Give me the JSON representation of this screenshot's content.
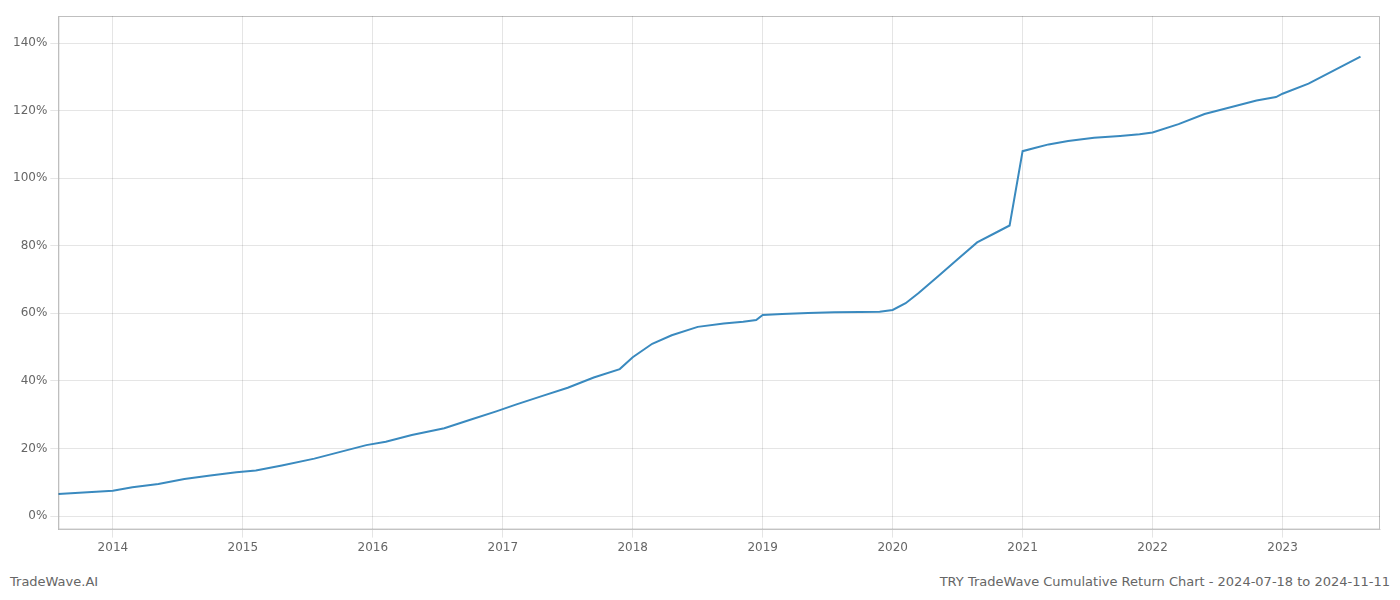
{
  "chart_data": {
    "type": "line",
    "title": "TRY TradeWave Cumulative Return Chart - 2024-07-18 to 2024-11-11",
    "annotations": [
      "TradeWave.AI"
    ],
    "color": "#3a8abf",
    "grid": true,
    "x": [
      2013.58,
      2014.0,
      2014.15,
      2014.35,
      2014.55,
      2014.75,
      2014.95,
      2015.1,
      2015.3,
      2015.55,
      2015.75,
      2015.95,
      2016.1,
      2016.3,
      2016.55,
      2016.75,
      2016.95,
      2017.1,
      2017.3,
      2017.5,
      2017.7,
      2017.9,
      2018.0,
      2018.15,
      2018.3,
      2018.5,
      2018.7,
      2018.85,
      2018.95,
      2019.0,
      2019.15,
      2019.35,
      2019.55,
      2019.75,
      2019.9,
      2020.0,
      2020.1,
      2020.2,
      2020.35,
      2020.5,
      2020.65,
      2020.8,
      2020.9,
      2021.0,
      2021.1,
      2021.2,
      2021.35,
      2021.55,
      2021.75,
      2021.9,
      2022.0,
      2022.2,
      2022.4,
      2022.6,
      2022.8,
      2022.95,
      2023.0,
      2023.2,
      2023.4,
      2023.6
    ],
    "values": [
      6.5,
      7.5,
      8.5,
      9.5,
      11,
      12,
      13,
      13.5,
      15,
      17,
      19,
      21,
      22,
      24,
      26,
      28.5,
      31,
      33,
      35.5,
      38,
      41,
      43.5,
      47,
      51,
      53.5,
      56,
      57,
      57.5,
      58,
      59.5,
      59.8,
      60.1,
      60.3,
      60.4,
      60.5,
      61,
      63,
      66,
      71,
      76,
      81,
      84,
      86,
      108,
      109,
      110,
      111,
      112,
      112.5,
      113,
      113.5,
      116,
      119,
      121,
      123,
      124,
      125,
      128,
      132,
      136
    ],
    "xlim": [
      2013.58,
      2023.75
    ],
    "xticks": [
      2014,
      2015,
      2016,
      2017,
      2018,
      2019,
      2020,
      2021,
      2022,
      2023
    ],
    "ylim": [
      -4,
      148
    ],
    "yticks": [
      {
        "value": 0,
        "label": "0%"
      },
      {
        "value": 20,
        "label": "20%"
      },
      {
        "value": 40,
        "label": "40%"
      },
      {
        "value": 60,
        "label": "60%"
      },
      {
        "value": 80,
        "label": "80%"
      },
      {
        "value": 100,
        "label": "100%"
      },
      {
        "value": 120,
        "label": "120%"
      },
      {
        "value": 140,
        "label": "140%"
      }
    ]
  }
}
